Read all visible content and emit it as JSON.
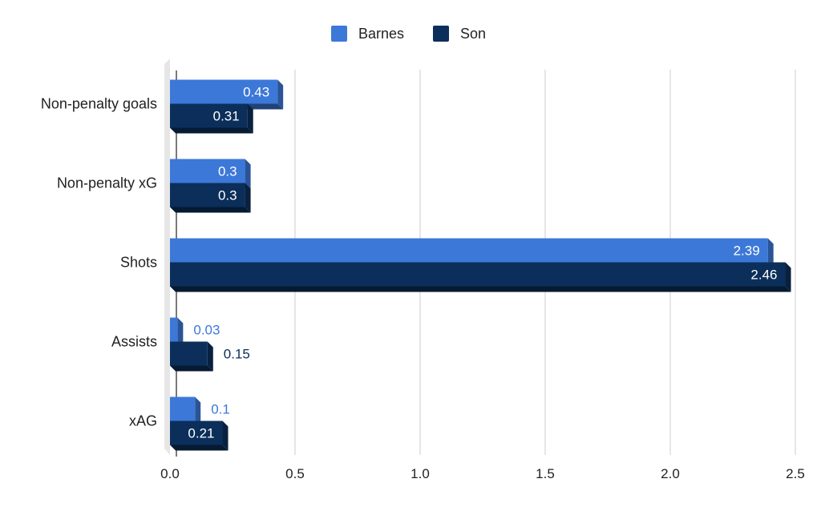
{
  "chart_data": {
    "type": "bar",
    "orientation": "horizontal",
    "categories": [
      "Non-penalty goals",
      "Non-penalty xG",
      "Shots",
      "Assists",
      "xAG"
    ],
    "series": [
      {
        "name": "Barnes",
        "color": "#3c78d8",
        "values": [
          0.43,
          0.3,
          2.39,
          0.03,
          0.1
        ]
      },
      {
        "name": "Son",
        "color": "#0b2f5a",
        "values": [
          0.31,
          0.3,
          2.46,
          0.15,
          0.21
        ]
      }
    ],
    "xlim": [
      0,
      2.5
    ],
    "xticks": [
      "0.0",
      "0.5",
      "1.0",
      "1.5",
      "2.0",
      "2.5"
    ],
    "value_labels": true,
    "style": "3d",
    "grid": true,
    "legend_position": "top"
  }
}
